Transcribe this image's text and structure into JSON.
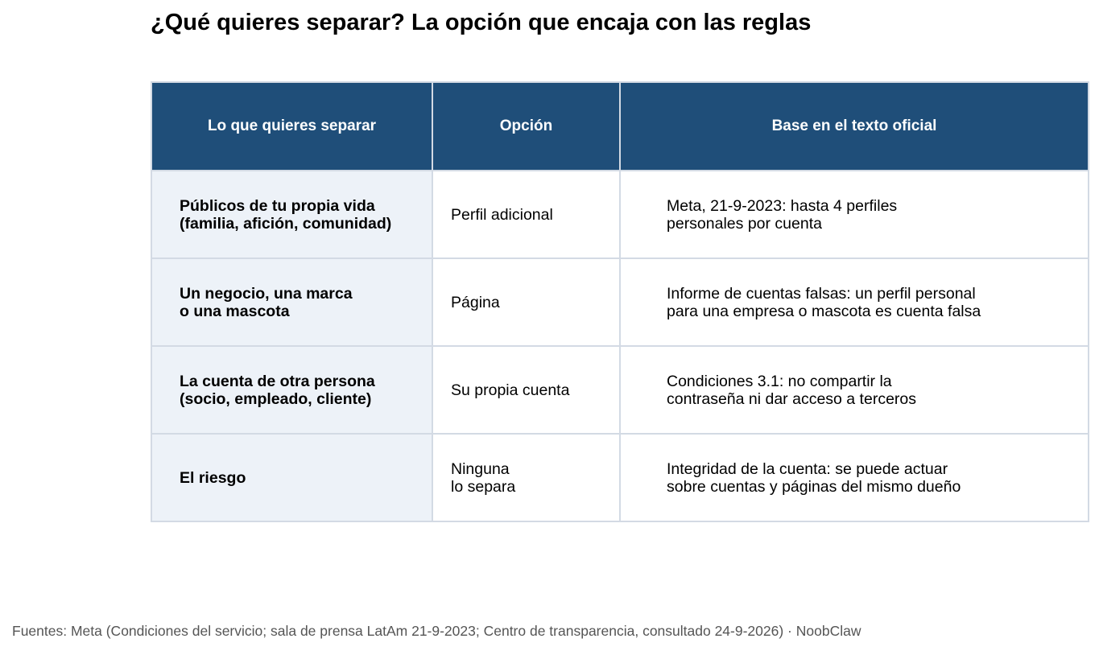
{
  "page": {
    "title": "¿Qué quieres separar? La opción que encaja con las reglas"
  },
  "table": {
    "headers": [
      "Lo que quieres separar",
      "Opción",
      "Base en el texto oficial"
    ],
    "rows": [
      {
        "need": [
          "Públicos de tu propia vida",
          "(familia, afición, comunidad)"
        ],
        "option": [
          "Perfil adicional"
        ],
        "basis": [
          "Meta, 21-9-2023: hasta 4 perfiles",
          "personales por cuenta"
        ]
      },
      {
        "need": [
          "Un negocio, una marca",
          "o una mascota"
        ],
        "option": [
          "Página"
        ],
        "basis": [
          "Informe de cuentas falsas: un perfil personal",
          "para una empresa o mascota es cuenta falsa"
        ]
      },
      {
        "need": [
          "La cuenta de otra persona",
          "(socio, empleado, cliente)"
        ],
        "option": [
          "Su propia cuenta"
        ],
        "basis": [
          "Condiciones 3.1: no compartir la",
          "contraseña ni dar acceso a terceros"
        ]
      },
      {
        "need": [
          "El riesgo"
        ],
        "option": [
          "Ninguna",
          "lo separa"
        ],
        "basis": [
          "Integridad de la cuenta: se puede actuar",
          "sobre cuentas y páginas del mismo dueño"
        ]
      }
    ]
  },
  "footer": {
    "sources": "Fuentes: Meta (Condiciones del servicio; sala de prensa LatAm 21-9-2023; Centro de transparencia, consultado 24-9-2026) · NoobClaw"
  },
  "colors": {
    "header_background": "#1f4e79",
    "first_column_background": "#edf2f8",
    "border": "#d3dae4",
    "footer_text": "#555555"
  }
}
